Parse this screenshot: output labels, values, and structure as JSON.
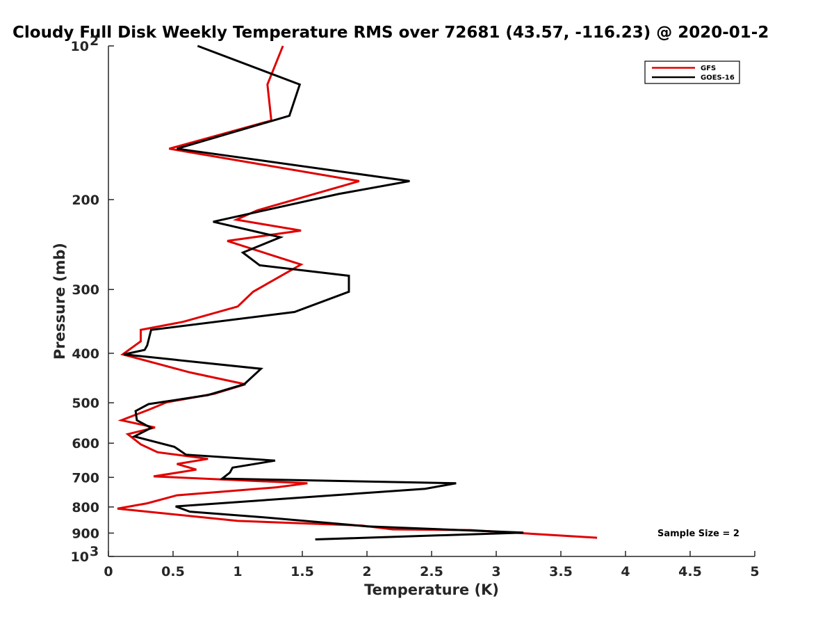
{
  "chart_data": {
    "type": "line",
    "title": "Cloudy Full Disk Weekly Temperature RMS over 72681 (43.57, -116.23) @ 2020-01-2",
    "xlabel": "Temperature (K)",
    "ylabel": "Pressure (mb)",
    "xlim": [
      0,
      5
    ],
    "ylim": [
      100,
      1000
    ],
    "y_scale": "log",
    "y_reversed": true,
    "grid": false,
    "legend_position": "top-right",
    "x_ticks": [
      0,
      0.5,
      1,
      1.5,
      2,
      2.5,
      3,
      3.5,
      4,
      4.5,
      5
    ],
    "x_tick_labels": [
      "0",
      "0.5",
      "1",
      "1.5",
      "2",
      "2.5",
      "3",
      "3.5",
      "4",
      "4.5",
      "5"
    ],
    "y_ticks": [
      {
        "value": 100,
        "base": "10",
        "exp": "2"
      },
      {
        "value": 200,
        "base": "200",
        "exp": ""
      },
      {
        "value": 300,
        "base": "300",
        "exp": ""
      },
      {
        "value": 400,
        "base": "400",
        "exp": ""
      },
      {
        "value": 500,
        "base": "500",
        "exp": ""
      },
      {
        "value": 600,
        "base": "600",
        "exp": ""
      },
      {
        "value": 700,
        "base": "700",
        "exp": ""
      },
      {
        "value": 800,
        "base": "800",
        "exp": ""
      },
      {
        "value": 900,
        "base": "900",
        "exp": ""
      },
      {
        "value": 1000,
        "base": "10",
        "exp": "3"
      }
    ],
    "series": [
      {
        "name": "GFS",
        "color": "#e00000",
        "x": [
          1.35,
          1.23,
          1.26,
          0.47,
          1.94,
          1.15,
          0.99,
          1.49,
          0.92,
          1.49,
          1.12,
          1.0,
          0.58,
          0.25,
          0.25,
          0.11,
          0.63,
          1.06,
          0.82,
          0.45,
          0.32,
          0.1,
          0.36,
          0.15,
          0.25,
          0.38,
          0.77,
          0.53,
          0.68,
          0.35,
          1.54,
          1.3,
          0.53,
          0.3,
          0.07,
          1.0,
          1.96,
          2.2,
          2.8,
          3.78
        ],
        "y": [
          100,
          119,
          140,
          159,
          184,
          210,
          219,
          230,
          241,
          268,
          303,
          324,
          347,
          360,
          379,
          402,
          436,
          460,
          480,
          499,
          515,
          541,
          559,
          576,
          603,
          625,
          644,
          659,
          676,
          697,
          719,
          732,
          759,
          787,
          806,
          852,
          870,
          885,
          888,
          919
        ]
      },
      {
        "name": "GOES-16",
        "color": "#000000",
        "x": [
          0.69,
          1.48,
          1.4,
          0.53,
          2.33,
          1.78,
          0.81,
          1.33,
          1.04,
          1.17,
          1.86,
          1.86,
          1.44,
          0.33,
          0.3,
          0.28,
          0.12,
          1.18,
          1.05,
          0.77,
          0.31,
          0.21,
          0.22,
          0.33,
          0.2,
          0.51,
          0.6,
          1.29,
          0.96,
          0.94,
          0.88,
          2.69,
          2.45,
          0.52,
          0.63,
          1.2,
          2.0,
          3.21,
          1.6
        ],
        "y": [
          100,
          119,
          137,
          159,
          184,
          195,
          221,
          237,
          254,
          269,
          282,
          303,
          332,
          360,
          386,
          394,
          402,
          429,
          460,
          483,
          503,
          519,
          541,
          560,
          582,
          610,
          632,
          649,
          670,
          685,
          704,
          719,
          737,
          798,
          817,
          838,
          873,
          898,
          926
        ]
      }
    ],
    "annotation": "Sample Size = 2"
  }
}
